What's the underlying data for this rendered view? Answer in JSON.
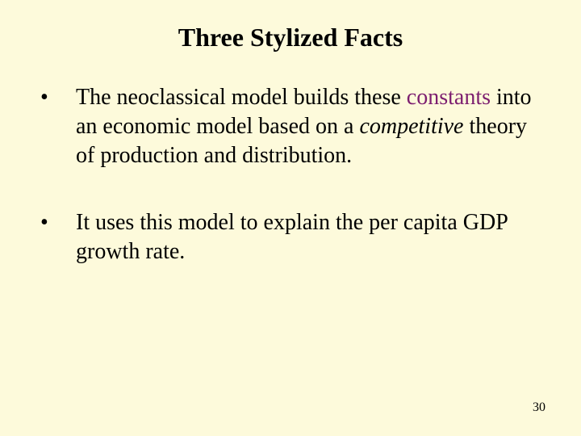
{
  "slide": {
    "background_color": "#fdfadb",
    "text_color": "#000000",
    "accent_color": "#7c1e6f",
    "title": {
      "text": "Three Stylized Facts",
      "fontsize": 32,
      "weight": "bold"
    },
    "bullets": [
      {
        "marker": "•",
        "segments": [
          {
            "text": "The neoclassical model builds these ",
            "style": "normal"
          },
          {
            "text": "constants",
            "style": "accent"
          },
          {
            "text": " into an economic model based on a ",
            "style": "normal"
          },
          {
            "text": "competitive",
            "style": "italic"
          },
          {
            "text": " theory of production and distribution.",
            "style": "normal"
          }
        ],
        "margin_bottom": 48
      },
      {
        "marker": "•",
        "segments": [
          {
            "text": "It uses this model to explain the per capita GDP growth rate.",
            "style": "normal"
          }
        ],
        "margin_bottom": 0
      }
    ],
    "body_fontsize": 28,
    "page_number": {
      "text": "30",
      "fontsize": 16
    }
  }
}
